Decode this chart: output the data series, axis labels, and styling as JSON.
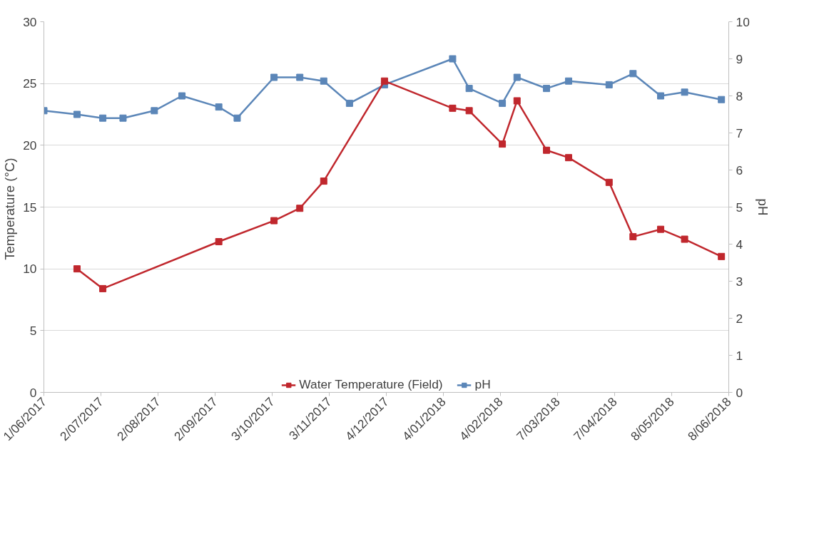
{
  "chart_data": {
    "type": "line",
    "xlabel": null,
    "ylabel": "Temperature  (°C)",
    "y2label": "pH",
    "xlim": [
      "2017-06-01",
      "2018-06-08"
    ],
    "xticks": [
      {
        "value": "2017-06-01",
        "label": "1/06/2017"
      },
      {
        "value": "2017-07-02",
        "label": "2/07/2017"
      },
      {
        "value": "2017-08-02",
        "label": "2/08/2017"
      },
      {
        "value": "2017-09-02",
        "label": "2/09/2017"
      },
      {
        "value": "2017-10-03",
        "label": "3/10/2017"
      },
      {
        "value": "2017-11-03",
        "label": "3/11/2017"
      },
      {
        "value": "2017-12-04",
        "label": "4/12/2017"
      },
      {
        "value": "2018-01-04",
        "label": "4/01/2018"
      },
      {
        "value": "2018-02-04",
        "label": "4/02/2018"
      },
      {
        "value": "2018-03-07",
        "label": "7/03/2018"
      },
      {
        "value": "2018-04-07",
        "label": "7/04/2018"
      },
      {
        "value": "2018-05-08",
        "label": "8/05/2018"
      },
      {
        "value": "2018-06-08",
        "label": "8/06/2018"
      }
    ],
    "ylim": [
      0,
      30
    ],
    "yticks": [
      0,
      5,
      10,
      15,
      20,
      25,
      30
    ],
    "y2lim": [
      0,
      10
    ],
    "y2ticks": [
      0,
      1,
      2,
      3,
      4,
      5,
      6,
      7,
      8,
      9,
      10
    ],
    "grid": "y",
    "legend": "bottom",
    "marker": "square",
    "line_style": "solid",
    "series": [
      {
        "name": "Water Temperature (Field)",
        "color": "#c0272d",
        "x": [
          "2017-06-19",
          "2017-07-03",
          "2017-09-04",
          "2017-10-04",
          "2017-10-18",
          "2017-10-31",
          "2017-12-03",
          "2018-01-09",
          "2018-01-18",
          "2018-02-05",
          "2018-02-13",
          "2018-03-01",
          "2018-03-13",
          "2018-04-04",
          "2018-04-17",
          "2018-05-02",
          "2018-05-15",
          "2018-06-04"
        ],
        "values": [
          10.0,
          8.4,
          12.2,
          13.9,
          14.9,
          17.1,
          25.2,
          23.0,
          22.8,
          20.1,
          23.6,
          19.6,
          19.0,
          17.0,
          12.6,
          13.2,
          12.4,
          11.0
        ]
      },
      {
        "name": "pH",
        "color": "#5b86b8",
        "axis": "y2",
        "x": [
          "2017-06-01",
          "2017-06-19",
          "2017-07-03",
          "2017-07-14",
          "2017-07-31",
          "2017-08-15",
          "2017-09-04",
          "2017-09-14",
          "2017-10-04",
          "2017-10-18",
          "2017-10-31",
          "2017-11-14",
          "2017-12-03",
          "2018-01-09",
          "2018-01-18",
          "2018-02-05",
          "2018-02-13",
          "2018-03-01",
          "2018-03-13",
          "2018-04-04",
          "2018-04-17",
          "2018-05-02",
          "2018-05-15",
          "2018-06-04"
        ],
        "values": [
          7.6,
          7.5,
          7.4,
          7.4,
          7.6,
          8.0,
          7.7,
          7.4,
          8.5,
          8.5,
          8.4,
          7.8,
          8.3,
          9.0,
          8.2,
          7.8,
          8.5,
          8.2,
          8.4,
          8.3,
          8.6,
          8.0,
          8.1,
          7.9
        ]
      }
    ]
  }
}
